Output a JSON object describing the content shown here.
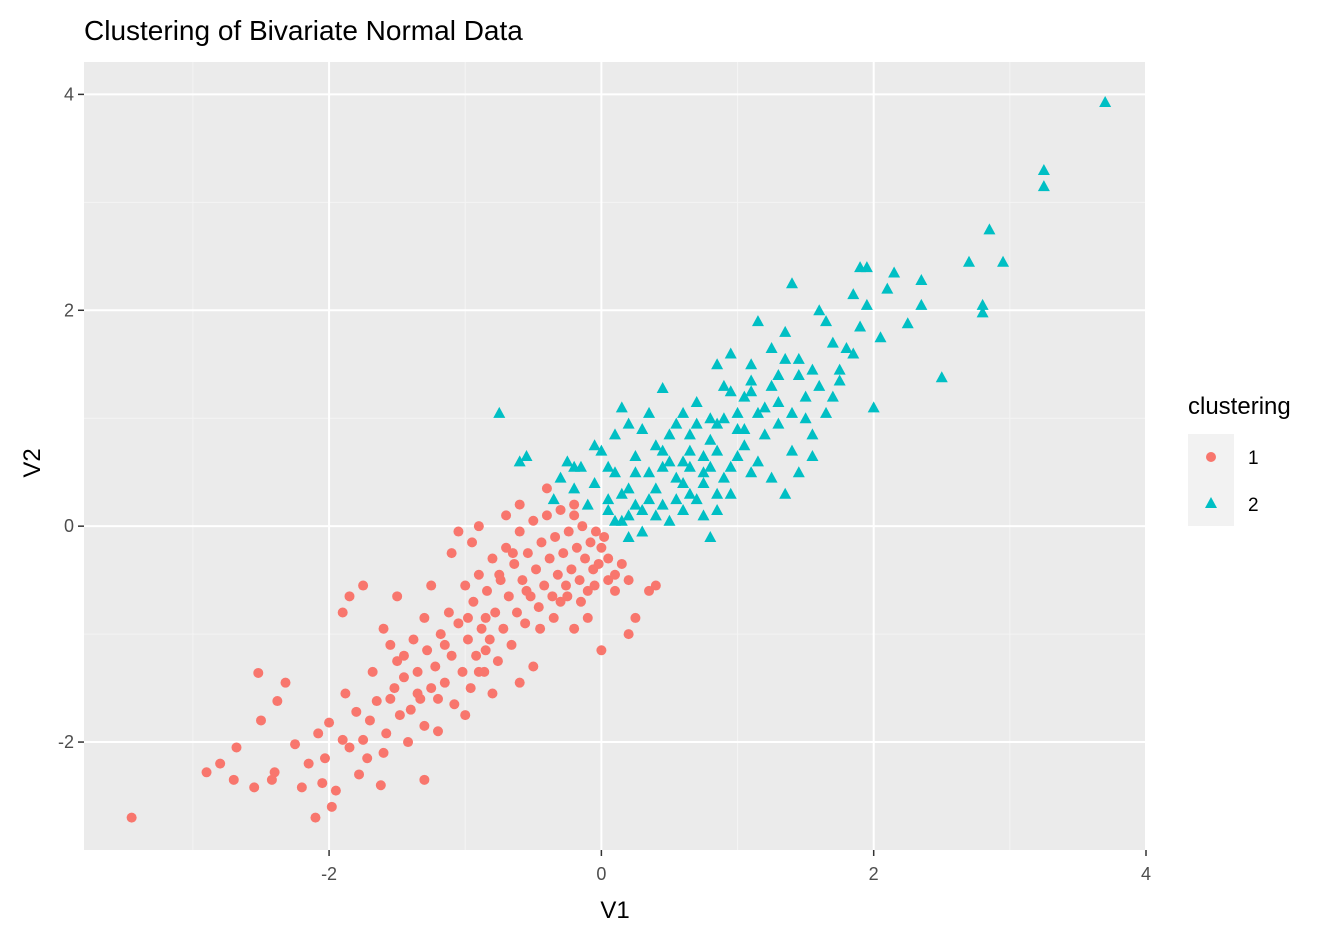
{
  "chart_data": {
    "type": "scatter",
    "title": "Clustering of Bivariate Normal Data",
    "xlabel": "V1",
    "ylabel": "V2",
    "xlim": [
      -3.8,
      4.0
    ],
    "ylim": [
      -3.0,
      4.3
    ],
    "x_ticks": [
      -2,
      0,
      2,
      4
    ],
    "y_ticks": [
      -2,
      0,
      2,
      4
    ],
    "x_tick_labels": [
      "-2",
      "0",
      "2",
      "4"
    ],
    "y_tick_labels": [
      "-2",
      "0",
      "2",
      "4"
    ],
    "grid": true,
    "background": "#EBEBEB",
    "legend": {
      "title": "clustering",
      "placement": "right"
    },
    "series": [
      {
        "name": "1",
        "shape": "circle",
        "color": "#F8766D",
        "points": [
          [
            -3.45,
            -2.7
          ],
          [
            -2.9,
            -2.28
          ],
          [
            -2.8,
            -2.2
          ],
          [
            -2.7,
            -2.35
          ],
          [
            -2.68,
            -2.05
          ],
          [
            -2.55,
            -2.42
          ],
          [
            -2.52,
            -1.36
          ],
          [
            -2.5,
            -1.8
          ],
          [
            -2.42,
            -2.35
          ],
          [
            -2.4,
            -2.28
          ],
          [
            -2.38,
            -1.62
          ],
          [
            -2.32,
            -1.45
          ],
          [
            -2.25,
            -2.02
          ],
          [
            -2.2,
            -2.42
          ],
          [
            -2.15,
            -2.2
          ],
          [
            -2.1,
            -2.7
          ],
          [
            -2.08,
            -1.92
          ],
          [
            -2.05,
            -2.38
          ],
          [
            -2.03,
            -2.15
          ],
          [
            -2.0,
            -1.82
          ],
          [
            -1.98,
            -2.6
          ],
          [
            -1.95,
            -2.45
          ],
          [
            -1.9,
            -1.98
          ],
          [
            -1.88,
            -1.55
          ],
          [
            -1.85,
            -2.05
          ],
          [
            -1.8,
            -1.72
          ],
          [
            -1.78,
            -2.3
          ],
          [
            -1.75,
            -1.98
          ],
          [
            -1.72,
            -2.15
          ],
          [
            -1.7,
            -1.8
          ],
          [
            -1.68,
            -1.35
          ],
          [
            -1.65,
            -1.62
          ],
          [
            -1.62,
            -2.4
          ],
          [
            -1.6,
            -2.1
          ],
          [
            -1.58,
            -1.92
          ],
          [
            -1.55,
            -1.6
          ],
          [
            -1.52,
            -1.5
          ],
          [
            -1.5,
            -1.25
          ],
          [
            -1.48,
            -1.75
          ],
          [
            -1.45,
            -1.4
          ],
          [
            -1.42,
            -2.0
          ],
          [
            -1.4,
            -1.7
          ],
          [
            -1.38,
            -1.05
          ],
          [
            -1.35,
            -1.35
          ],
          [
            -1.33,
            -1.6
          ],
          [
            -1.3,
            -1.85
          ],
          [
            -1.28,
            -1.15
          ],
          [
            -1.25,
            -1.5
          ],
          [
            -1.22,
            -1.3
          ],
          [
            -1.2,
            -1.9
          ],
          [
            -1.18,
            -1.0
          ],
          [
            -1.15,
            -1.45
          ],
          [
            -1.12,
            -0.8
          ],
          [
            -1.1,
            -1.2
          ],
          [
            -1.08,
            -1.65
          ],
          [
            -1.05,
            -0.9
          ],
          [
            -1.02,
            -1.35
          ],
          [
            -1.0,
            -0.55
          ],
          [
            -0.98,
            -1.05
          ],
          [
            -0.96,
            -1.5
          ],
          [
            -0.94,
            -0.7
          ],
          [
            -0.92,
            -1.2
          ],
          [
            -0.9,
            -0.45
          ],
          [
            -0.88,
            -0.95
          ],
          [
            -0.86,
            -1.35
          ],
          [
            -0.84,
            -0.6
          ],
          [
            -0.82,
            -1.05
          ],
          [
            -0.8,
            -0.3
          ],
          [
            -0.78,
            -0.8
          ],
          [
            -0.76,
            -1.25
          ],
          [
            -0.74,
            -0.5
          ],
          [
            -0.72,
            -0.95
          ],
          [
            -0.7,
            -0.2
          ],
          [
            -0.68,
            -0.65
          ],
          [
            -0.66,
            -1.1
          ],
          [
            -0.64,
            -0.35
          ],
          [
            -0.62,
            -0.8
          ],
          [
            -0.6,
            -0.05
          ],
          [
            -0.58,
            -0.5
          ],
          [
            -0.56,
            -0.9
          ],
          [
            -0.54,
            -0.25
          ],
          [
            -0.52,
            -0.65
          ],
          [
            -0.5,
            0.05
          ],
          [
            -0.48,
            -0.4
          ],
          [
            -0.46,
            -0.75
          ],
          [
            -0.44,
            -0.15
          ],
          [
            -0.42,
            -0.55
          ],
          [
            -0.4,
            0.1
          ],
          [
            -0.38,
            -0.3
          ],
          [
            -0.36,
            -0.65
          ],
          [
            -0.34,
            -0.1
          ],
          [
            -0.32,
            -0.45
          ],
          [
            -0.3,
            0.15
          ],
          [
            -0.28,
            -0.25
          ],
          [
            -0.26,
            -0.55
          ],
          [
            -0.24,
            -0.05
          ],
          [
            -0.22,
            -0.4
          ],
          [
            -0.2,
            0.1
          ],
          [
            -0.18,
            -0.2
          ],
          [
            -0.16,
            -0.5
          ],
          [
            -0.14,
            0.0
          ],
          [
            -0.12,
            -0.3
          ],
          [
            -0.1,
            -0.6
          ],
          [
            -0.08,
            -0.15
          ],
          [
            -0.06,
            -0.4
          ],
          [
            -0.04,
            -0.05
          ],
          [
            -0.02,
            -0.35
          ],
          [
            0.0,
            -0.2
          ],
          [
            0.02,
            -0.1
          ],
          [
            0.05,
            -0.3
          ],
          [
            -1.9,
            -0.8
          ],
          [
            -1.85,
            -0.65
          ],
          [
            -1.75,
            -0.55
          ],
          [
            -1.5,
            -0.65
          ],
          [
            -1.3,
            -0.85
          ],
          [
            -1.25,
            -0.55
          ],
          [
            -1.1,
            -0.25
          ],
          [
            -1.05,
            -0.05
          ],
          [
            -0.95,
            -0.15
          ],
          [
            -0.9,
            0.0
          ],
          [
            -0.7,
            0.1
          ],
          [
            -0.6,
            0.2
          ],
          [
            -0.4,
            0.35
          ],
          [
            -0.2,
            0.2
          ],
          [
            0.1,
            -0.6
          ],
          [
            0.2,
            -0.5
          ],
          [
            0.25,
            -0.85
          ],
          [
            0.35,
            -0.6
          ],
          [
            0.4,
            -0.55
          ],
          [
            0.2,
            -1.0
          ],
          [
            0.0,
            -1.15
          ],
          [
            -0.2,
            -0.95
          ],
          [
            -0.1,
            -0.85
          ],
          [
            -0.5,
            -1.3
          ],
          [
            -0.6,
            -1.45
          ],
          [
            -0.8,
            -1.55
          ],
          [
            -0.9,
            -1.35
          ],
          [
            -1.0,
            -1.75
          ],
          [
            -1.2,
            -1.6
          ],
          [
            -1.3,
            -2.35
          ],
          [
            -1.6,
            -0.95
          ],
          [
            -1.55,
            -1.1
          ],
          [
            -1.45,
            -1.2
          ],
          [
            -1.35,
            -1.55
          ],
          [
            -1.15,
            -1.1
          ],
          [
            -0.98,
            -0.85
          ],
          [
            -0.85,
            -1.15
          ],
          [
            -0.75,
            -0.45
          ],
          [
            -0.65,
            -0.25
          ],
          [
            -0.55,
            -0.6
          ],
          [
            -0.45,
            -0.95
          ],
          [
            -0.35,
            -0.85
          ],
          [
            -0.3,
            -0.7
          ],
          [
            -0.25,
            -0.65
          ],
          [
            -0.15,
            -0.7
          ],
          [
            -0.05,
            -0.55
          ],
          [
            0.05,
            -0.5
          ],
          [
            0.1,
            -0.45
          ],
          [
            0.15,
            -0.35
          ],
          [
            -0.85,
            -0.85
          ]
        ]
      },
      {
        "name": "2",
        "shape": "triangle",
        "color": "#00BFC4",
        "points": [
          [
            3.7,
            3.93
          ],
          [
            3.25,
            3.3
          ],
          [
            3.25,
            3.15
          ],
          [
            2.85,
            2.75
          ],
          [
            2.95,
            2.45
          ],
          [
            2.7,
            2.45
          ],
          [
            2.8,
            2.05
          ],
          [
            2.8,
            1.98
          ],
          [
            2.5,
            1.38
          ],
          [
            2.35,
            2.28
          ],
          [
            2.35,
            2.05
          ],
          [
            2.25,
            1.88
          ],
          [
            2.15,
            2.35
          ],
          [
            2.1,
            2.2
          ],
          [
            2.05,
            1.75
          ],
          [
            1.95,
            2.4
          ],
          [
            1.9,
            2.4
          ],
          [
            1.95,
            2.05
          ],
          [
            1.9,
            1.85
          ],
          [
            1.85,
            2.15
          ],
          [
            1.8,
            1.65
          ],
          [
            1.75,
            1.35
          ],
          [
            1.7,
            1.7
          ],
          [
            1.65,
            1.9
          ],
          [
            1.6,
            2.0
          ],
          [
            1.55,
            1.45
          ],
          [
            1.5,
            1.2
          ],
          [
            1.45,
            1.55
          ],
          [
            1.4,
            2.25
          ],
          [
            1.35,
            1.8
          ],
          [
            1.3,
            1.4
          ],
          [
            1.25,
            1.65
          ],
          [
            1.2,
            1.1
          ],
          [
            1.15,
            1.9
          ],
          [
            1.1,
            1.5
          ],
          [
            1.05,
            1.2
          ],
          [
            1.0,
            0.9
          ],
          [
            0.95,
            1.6
          ],
          [
            0.9,
            1.3
          ],
          [
            0.85,
            0.7
          ],
          [
            0.8,
            1.0
          ],
          [
            0.75,
            0.5
          ],
          [
            0.7,
            1.15
          ],
          [
            0.65,
            0.85
          ],
          [
            0.6,
            0.4
          ],
          [
            0.55,
            0.95
          ],
          [
            0.5,
            0.6
          ],
          [
            0.45,
            0.2
          ],
          [
            0.4,
            0.75
          ],
          [
            0.35,
            0.5
          ],
          [
            0.3,
            0.15
          ],
          [
            0.25,
            0.65
          ],
          [
            0.2,
            0.35
          ],
          [
            0.15,
            0.05
          ],
          [
            0.1,
            0.5
          ],
          [
            0.05,
            0.25
          ],
          [
            0.0,
            0.7
          ],
          [
            -0.05,
            0.4
          ],
          [
            -0.1,
            0.2
          ],
          [
            -0.15,
            0.55
          ],
          [
            -0.2,
            0.35
          ],
          [
            -0.25,
            0.6
          ],
          [
            -0.3,
            0.45
          ],
          [
            -0.35,
            0.25
          ],
          [
            -0.55,
            0.65
          ],
          [
            -0.6,
            0.6
          ],
          [
            -0.75,
            1.05
          ],
          [
            0.45,
            1.28
          ],
          [
            0.55,
            0.45
          ],
          [
            0.65,
            0.3
          ],
          [
            0.75,
            0.1
          ],
          [
            0.85,
            0.3
          ],
          [
            0.95,
            0.55
          ],
          [
            1.05,
            0.75
          ],
          [
            1.15,
            0.6
          ],
          [
            1.25,
            0.45
          ],
          [
            1.35,
            0.3
          ],
          [
            1.45,
            0.5
          ],
          [
            1.55,
            0.85
          ],
          [
            1.65,
            1.05
          ],
          [
            1.75,
            1.45
          ],
          [
            1.85,
            1.6
          ],
          [
            2.0,
            1.1
          ],
          [
            1.4,
            1.05
          ],
          [
            1.2,
            0.85
          ],
          [
            1.0,
            0.65
          ],
          [
            0.9,
            0.45
          ],
          [
            0.7,
            0.25
          ],
          [
            0.5,
            0.05
          ],
          [
            0.3,
            -0.05
          ],
          [
            0.2,
            0.1
          ],
          [
            0.1,
            0.05
          ],
          [
            0.4,
            0.35
          ],
          [
            0.6,
            0.6
          ],
          [
            0.8,
            0.8
          ],
          [
            1.0,
            1.05
          ],
          [
            1.1,
            1.25
          ],
          [
            1.3,
            1.15
          ],
          [
            1.5,
            1.0
          ],
          [
            0.7,
            0.95
          ],
          [
            0.5,
            0.85
          ],
          [
            0.3,
            0.9
          ],
          [
            0.1,
            0.85
          ],
          [
            0.15,
            1.1
          ],
          [
            0.2,
            0.95
          ],
          [
            0.35,
            1.05
          ],
          [
            0.6,
            1.05
          ],
          [
            0.85,
            1.5
          ],
          [
            0.95,
            1.25
          ],
          [
            1.1,
            1.35
          ],
          [
            1.25,
            1.3
          ],
          [
            1.35,
            1.55
          ],
          [
            1.45,
            1.4
          ],
          [
            1.6,
            1.3
          ],
          [
            1.7,
            1.2
          ],
          [
            0.25,
            0.5
          ],
          [
            0.45,
            0.55
          ],
          [
            0.65,
            0.55
          ],
          [
            0.85,
            0.95
          ],
          [
            0.55,
            0.25
          ],
          [
            0.35,
            0.25
          ],
          [
            0.15,
            0.3
          ],
          [
            0.05,
            0.55
          ],
          [
            -0.05,
            0.75
          ],
          [
            -0.2,
            0.55
          ],
          [
            0.05,
            0.15
          ],
          [
            0.25,
            0.2
          ],
          [
            0.45,
            0.7
          ],
          [
            0.65,
            0.7
          ],
          [
            0.75,
            0.65
          ],
          [
            1.05,
            0.9
          ],
          [
            0.9,
            1.0
          ],
          [
            0.8,
            0.55
          ],
          [
            1.15,
            1.05
          ],
          [
            1.3,
            0.95
          ],
          [
            0.6,
            0.15
          ],
          [
            0.4,
            0.1
          ],
          [
            0.2,
            -0.1
          ],
          [
            0.8,
            -0.1
          ],
          [
            0.75,
            0.4
          ],
          [
            1.4,
            0.7
          ],
          [
            1.55,
            0.65
          ],
          [
            0.95,
            0.3
          ],
          [
            0.85,
            0.15
          ],
          [
            1.1,
            0.5
          ]
        ]
      }
    ]
  }
}
